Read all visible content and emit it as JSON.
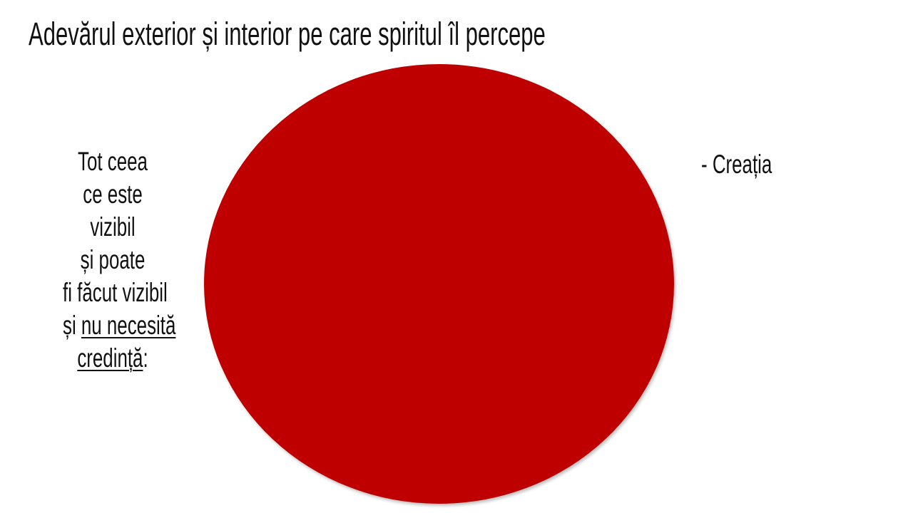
{
  "slide": {
    "title": "Adevărul exterior și interior pe care spiritul îl percepe",
    "circle_color": "#BE0000",
    "left_text": {
      "lines": [
        "Tot ceea",
        "ce este",
        "vizibil",
        "și poate",
        "fi făcut vizibil"
      ],
      "line6_prefix": "și ",
      "line6_emphasis": "nu necesită",
      "line7_emphasis": "credință",
      "line7_suffix": ":"
    },
    "right_text": "- Creația"
  }
}
